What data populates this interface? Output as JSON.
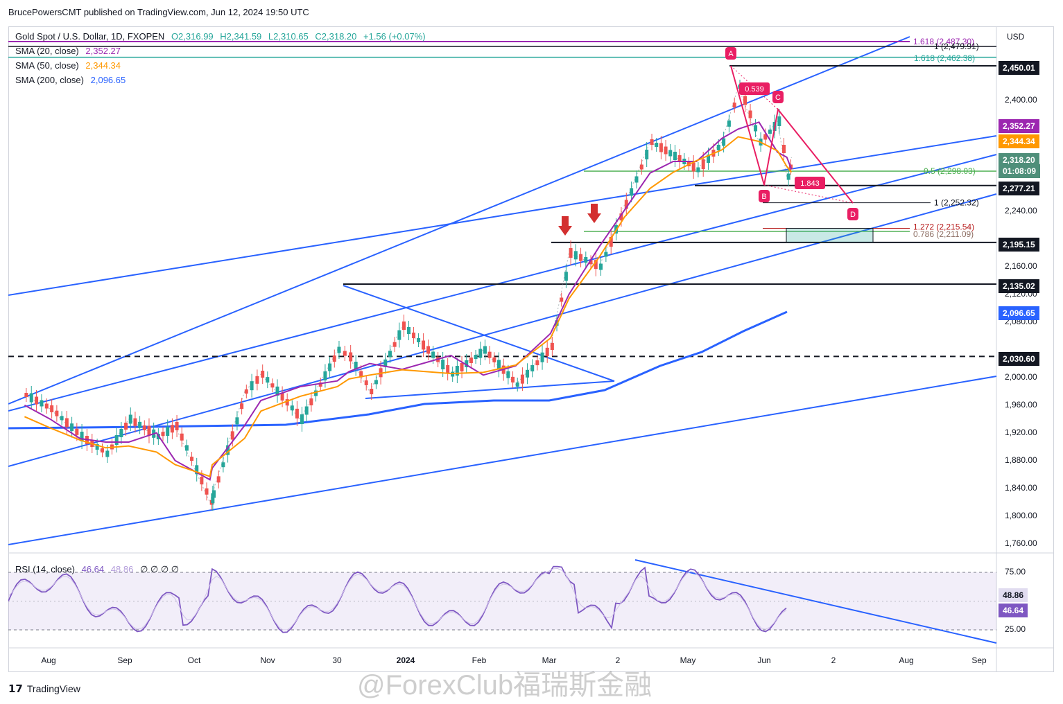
{
  "header": {
    "published": "BrucePowersCMT published on TradingView.com, Jun 12, 2024 19:50 UTC"
  },
  "legend": {
    "symbol": "Gold Spot / U.S. Dollar, 1D, FXOPEN",
    "open": "O2,316.99",
    "high": "H2,341.59",
    "low": "L2,310.65",
    "close": "C2,318.20",
    "change": "+1.56 (+0.07%)",
    "sma20_label": "SMA (20, close)",
    "sma20_value": "2,352.27",
    "sma50_label": "SMA (50, close)",
    "sma50_value": "2,344.34",
    "sma200_label": "SMA (200, close)",
    "sma200_value": "2,096.65"
  },
  "rsi_legend": {
    "label": "RSI (14, close)",
    "value": "46.64",
    "ma": "48.86",
    "extra": "∅ ∅ ∅ ∅"
  },
  "currency": "USD",
  "colors": {
    "up": "#26a69a",
    "down": "#ef5350",
    "sma20": "#9c27b0",
    "sma50": "#ff9800",
    "sma200": "#2962ff",
    "trend": "#2962ff",
    "fib_green": "#4caf50",
    "harmonic": "#e91e63"
  },
  "chart_data": {
    "type": "candlestick",
    "title": "Gold Spot / U.S. Dollar, 1D, FXOPEN",
    "ylim": [
      1740,
      2490
    ],
    "y_ticks": [
      "2,400.00",
      "2,240.00",
      "2,160.00",
      "2,120.00",
      "2,080.00",
      "2,000.00",
      "1,960.00",
      "1,920.00",
      "1,880.00",
      "1,840.00",
      "1,800.00",
      "1,760.00"
    ],
    "x_ticks": [
      "Aug",
      "Sep",
      "Oct",
      "Nov",
      "30",
      "2024",
      "Feb",
      "Mar",
      "2",
      "May",
      "Jun",
      "2",
      "Aug",
      "Sep"
    ],
    "price_tags": [
      {
        "value": "2,450.01",
        "bg": "#131722"
      },
      {
        "value": "2,352.27",
        "bg": "#9c27b0"
      },
      {
        "value": "2,344.34",
        "bg": "#ff9800"
      },
      {
        "value": "2,318.20",
        "bg": "#4f8f7a"
      },
      {
        "value": "01:08:09",
        "bg": "#4f8f7a"
      },
      {
        "value": "2,277.21",
        "bg": "#131722"
      },
      {
        "value": "2,195.15",
        "bg": "#131722"
      },
      {
        "value": "2,135.02",
        "bg": "#131722"
      },
      {
        "value": "2,096.65",
        "bg": "#2962ff"
      },
      {
        "value": "2,030.60",
        "bg": "#131722"
      }
    ],
    "fib_labels": [
      {
        "text": "1.618 (2,487.30)"
      },
      {
        "text": "1 (2,479.91)"
      },
      {
        "text": "1.618 (2,462.38)"
      },
      {
        "text": "0.5 (2,298.03)"
      },
      {
        "text": "1 (2,252.32)"
      },
      {
        "text": "1.272 (2,215.54)"
      },
      {
        "text": "0.786 (2,211.09)"
      }
    ],
    "harmonic_points": [
      {
        "label": "A",
        "price": 2450
      },
      {
        "label": "B",
        "price": 2278
      },
      {
        "label": "C",
        "price": 2387
      },
      {
        "label": "D",
        "price": 2252
      }
    ],
    "ratios": [
      "0.539",
      "1.843"
    ],
    "horizontal_levels": [
      2450.01,
      2277.21,
      2195.15,
      2135.02,
      2030.6
    ],
    "series": [
      {
        "name": "SMA (20, close)",
        "last": 2352.27
      },
      {
        "name": "SMA (50, close)",
        "last": 2344.34
      },
      {
        "name": "SMA (200, close)",
        "last": 2096.65
      }
    ],
    "close_path": [
      [
        "2023-07-17",
        1975
      ],
      [
        "2023-07-28",
        1955
      ],
      [
        "2023-08-10",
        1915
      ],
      [
        "2023-08-21",
        1890
      ],
      [
        "2023-08-31",
        1940
      ],
      [
        "2023-09-12",
        1915
      ],
      [
        "2023-09-20",
        1930
      ],
      [
        "2023-10-05",
        1820
      ],
      [
        "2023-10-06",
        1832
      ],
      [
        "2023-10-20",
        1980
      ],
      [
        "2023-10-27",
        2005
      ],
      [
        "2023-11-13",
        1940
      ],
      [
        "2023-11-29",
        2040
      ],
      [
        "2023-12-04",
        2030
      ],
      [
        "2023-12-13",
        1980
      ],
      [
        "2023-12-27",
        2075
      ],
      [
        "2024-01-17",
        2005
      ],
      [
        "2024-01-31",
        2040
      ],
      [
        "2024-02-14",
        1990
      ],
      [
        "2024-02-29",
        2045
      ],
      [
        "2024-03-08",
        2180
      ],
      [
        "2024-03-21",
        2160
      ],
      [
        "2024-04-01",
        2250
      ],
      [
        "2024-04-12",
        2340
      ],
      [
        "2024-04-22",
        2320
      ],
      [
        "2024-05-02",
        2300
      ],
      [
        "2024-05-13",
        2340
      ],
      [
        "2024-05-20",
        2420
      ],
      [
        "2024-05-29",
        2340
      ],
      [
        "2024-06-06",
        2370
      ],
      [
        "2024-06-10",
        2290
      ],
      [
        "2024-06-12",
        2318
      ]
    ],
    "rsi": {
      "levels": [
        75,
        25
      ],
      "value": 46.64,
      "ma": 48.86,
      "y_ticks": [
        "75.00",
        "25.00"
      ]
    }
  }
}
